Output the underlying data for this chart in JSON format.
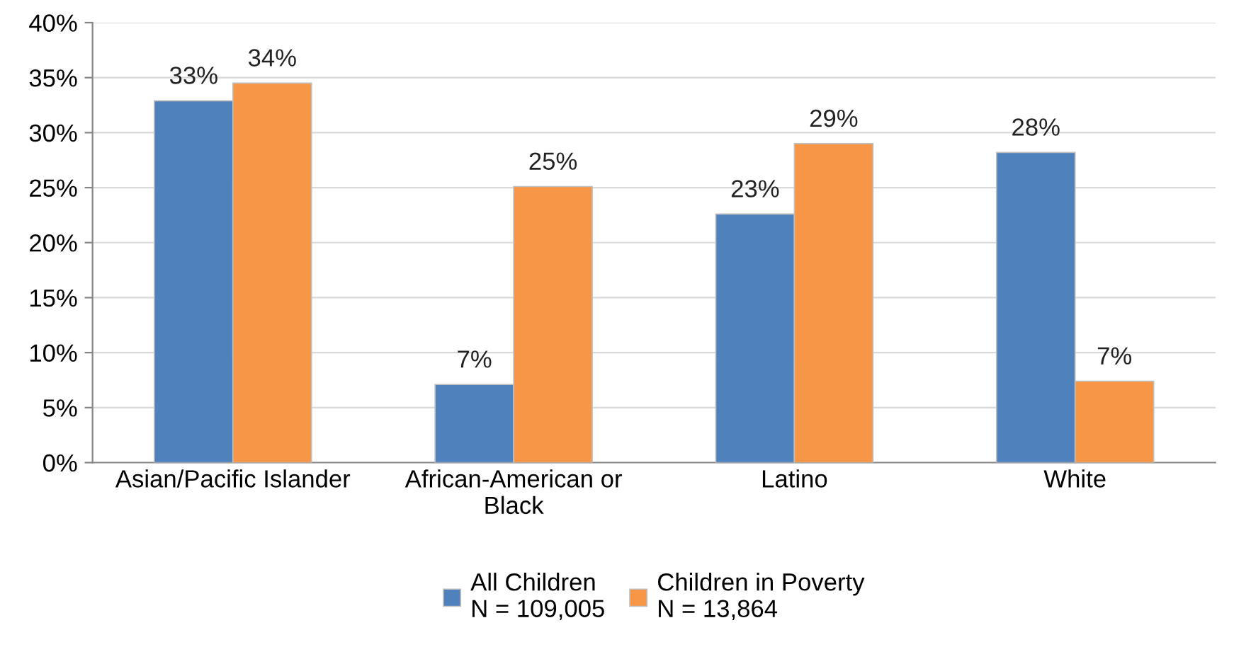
{
  "chart_data": {
    "type": "bar",
    "categories": [
      "Asian/Pacific Islander",
      "African-American or\nBlack",
      "Latino",
      "White"
    ],
    "series": [
      {
        "name": "All Children\nN = 109,005",
        "color": "#4f81bd",
        "values": [
          32.9,
          7.1,
          22.6,
          28.2
        ],
        "value_labels": [
          "33%",
          "7%",
          "23%",
          "28%"
        ]
      },
      {
        "name": "Children in Poverty\nN = 13,864",
        "color": "#f79646",
        "values": [
          34.5,
          25.1,
          29.0,
          7.4
        ],
        "value_labels": [
          "34%",
          "25%",
          "29%",
          "7%"
        ]
      }
    ],
    "ylim": [
      0,
      40
    ],
    "yticks": [
      {
        "value": 0,
        "label": "0%"
      },
      {
        "value": 5,
        "label": "5%"
      },
      {
        "value": 10,
        "label": "10%"
      },
      {
        "value": 15,
        "label": "15%"
      },
      {
        "value": 20,
        "label": "20%"
      },
      {
        "value": 25,
        "label": "25%"
      },
      {
        "value": 30,
        "label": "30%"
      },
      {
        "value": 35,
        "label": "35%"
      },
      {
        "value": 40,
        "label": "40%"
      }
    ],
    "grid": "y",
    "legend": "bottom"
  }
}
